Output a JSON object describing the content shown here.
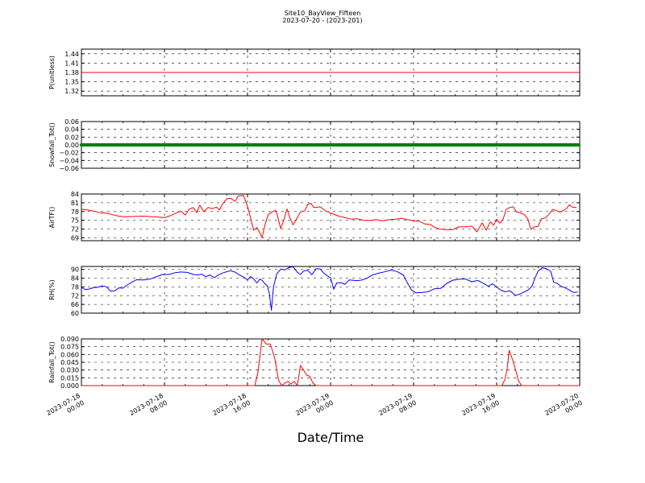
{
  "chart_data": {
    "title": "Site10_BayView_Fifteen",
    "subtitle": "2023-07-20 - (2023-201)",
    "xlabel": "Date/Time",
    "x_ticks": [
      "2023-07-18 00:00",
      "2023-07-18 08:00",
      "2023-07-18 16:00",
      "2023-07-19 00:00",
      "2023-07-19 08:00",
      "2023-07-19 16:00",
      "2023-07-20 00:00"
    ],
    "x_tick_lines": [
      [
        "2023-07-18",
        "00:00"
      ],
      [
        "2023-07-18",
        "08:00"
      ],
      [
        "2023-07-18",
        "16:00"
      ],
      [
        "2023-07-19",
        "00:00"
      ],
      [
        "2023-07-19",
        "08:00"
      ],
      [
        "2023-07-19",
        "16:00"
      ],
      [
        "2023-07-20",
        "00:00"
      ]
    ],
    "xlim": [
      "2023-07-18 00:00",
      "2023-07-20 00:00"
    ],
    "grid": true,
    "panels": [
      {
        "type": "line",
        "ylabel": "P(unitless)",
        "color": "#ff0000",
        "ylim": [
          1.305,
          1.455
        ],
        "yticks": [
          "1.44",
          "1.41",
          "1.38",
          "1.35",
          "1.32"
        ],
        "ytick_values": [
          1.44,
          1.41,
          1.38,
          1.35,
          1.32
        ],
        "points": [
          [
            0,
            1.38
          ],
          [
            48,
            1.38
          ]
        ]
      },
      {
        "type": "scatter",
        "ylabel": "Snowfall_Tot()",
        "color": "#008000",
        "ylim": [
          -0.06,
          0.06
        ],
        "yticks": [
          "0.06",
          "0.04",
          "0.02",
          "0.00",
          "−0.02",
          "−0.04",
          "−0.06"
        ],
        "ytick_values": [
          0.06,
          0.04,
          0.02,
          0.0,
          -0.02,
          -0.04,
          -0.06
        ],
        "points": [
          [
            0,
            0.0
          ],
          [
            48,
            0.0
          ]
        ]
      },
      {
        "type": "line",
        "ylabel": "AirTF()",
        "color": "#ff0000",
        "ylim": [
          68,
          84
        ],
        "yticks": [
          "84",
          "81",
          "78",
          "75",
          "72",
          "69"
        ],
        "ytick_values": [
          84,
          81,
          78,
          75,
          72,
          69
        ],
        "points": [
          [
            0,
            78.8
          ],
          [
            0.6,
            78.5
          ],
          [
            1.2,
            78.1
          ],
          [
            1.8,
            77.6
          ],
          [
            2.4,
            77.5
          ],
          [
            3.0,
            76.9
          ],
          [
            3.6,
            76.4
          ],
          [
            4.2,
            76.2
          ],
          [
            5.0,
            76.3
          ],
          [
            6.0,
            76.4
          ],
          [
            6.8,
            76.2
          ],
          [
            7.4,
            76.1
          ],
          [
            8.0,
            75.9
          ],
          [
            8.6,
            76.6
          ],
          [
            9.2,
            77.6
          ],
          [
            9.6,
            78.1
          ],
          [
            10.0,
            76.8
          ],
          [
            10.4,
            78.9
          ],
          [
            10.8,
            79.3
          ],
          [
            11.1,
            77.6
          ],
          [
            11.4,
            80.2
          ],
          [
            11.8,
            78.0
          ],
          [
            12.2,
            79.4
          ],
          [
            12.6,
            79.0
          ],
          [
            13.0,
            79.5
          ],
          [
            13.3,
            78.6
          ],
          [
            13.6,
            80.6
          ],
          [
            14.0,
            82.4
          ],
          [
            14.4,
            82.5
          ],
          [
            14.8,
            81.5
          ],
          [
            15.1,
            83.3
          ],
          [
            15.6,
            83.5
          ],
          [
            16.0,
            79.8
          ],
          [
            16.3,
            75.7
          ],
          [
            16.6,
            71.6
          ],
          [
            16.9,
            72.5
          ],
          [
            17.2,
            70.7
          ],
          [
            17.4,
            69.0
          ],
          [
            17.7,
            73.7
          ],
          [
            18.0,
            77.0
          ],
          [
            18.4,
            77.9
          ],
          [
            18.7,
            78.4
          ],
          [
            18.9,
            76.5
          ],
          [
            19.2,
            72.1
          ],
          [
            19.5,
            75.2
          ],
          [
            19.8,
            78.9
          ],
          [
            20.1,
            75.7
          ],
          [
            20.4,
            73.4
          ],
          [
            20.8,
            75.9
          ],
          [
            21.1,
            77.9
          ],
          [
            21.5,
            78.2
          ],
          [
            21.8,
            80.4
          ],
          [
            22.1,
            80.8
          ],
          [
            22.4,
            79.4
          ],
          [
            23.0,
            79.6
          ],
          [
            23.6,
            78.1
          ],
          [
            24.2,
            77.2
          ],
          [
            24.8,
            76.4
          ],
          [
            25.4,
            75.9
          ],
          [
            26.0,
            75.4
          ],
          [
            26.6,
            75.5
          ],
          [
            27.2,
            75.0
          ],
          [
            27.8,
            74.9
          ],
          [
            28.4,
            75.2
          ],
          [
            29.0,
            74.8
          ],
          [
            29.6,
            75.2
          ],
          [
            30.2,
            75.3
          ],
          [
            30.8,
            75.7
          ],
          [
            31.4,
            75.2
          ],
          [
            32.0,
            74.9
          ],
          [
            32.6,
            74.6
          ],
          [
            33.1,
            73.7
          ],
          [
            33.6,
            73.6
          ],
          [
            34.0,
            72.6
          ],
          [
            34.5,
            72.0
          ],
          [
            35.2,
            71.8
          ],
          [
            35.8,
            71.8
          ],
          [
            36.3,
            72.7
          ],
          [
            37.0,
            72.8
          ],
          [
            37.6,
            73.0
          ],
          [
            38.1,
            71.0
          ],
          [
            38.6,
            74.1
          ],
          [
            39.0,
            71.6
          ],
          [
            39.4,
            74.5
          ],
          [
            39.7,
            73.3
          ],
          [
            40.0,
            75.4
          ],
          [
            40.3,
            74.0
          ],
          [
            40.6,
            75.1
          ],
          [
            40.9,
            78.6
          ],
          [
            41.2,
            79.3
          ],
          [
            41.6,
            79.6
          ],
          [
            41.9,
            77.9
          ],
          [
            42.3,
            77.6
          ],
          [
            42.7,
            76.8
          ],
          [
            43.0,
            75.5
          ],
          [
            43.3,
            71.9
          ],
          [
            43.6,
            72.7
          ],
          [
            44.0,
            72.9
          ],
          [
            44.3,
            75.5
          ],
          [
            44.7,
            75.8
          ],
          [
            45.1,
            77.3
          ],
          [
            45.4,
            78.7
          ],
          [
            45.8,
            78.3
          ],
          [
            46.1,
            77.8
          ],
          [
            46.4,
            78.3
          ],
          [
            46.7,
            78.9
          ],
          [
            47.0,
            80.3
          ],
          [
            47.3,
            79.5
          ],
          [
            47.7,
            79.4
          ]
        ]
      },
      {
        "type": "line",
        "ylabel": "RH(%)",
        "color": "#0000ff",
        "ylim": [
          60,
          92
        ],
        "yticks": [
          "90",
          "84",
          "78",
          "72",
          "66",
          "60"
        ],
        "ytick_values": [
          90,
          84,
          78,
          72,
          66,
          60
        ],
        "points": [
          [
            0,
            77.6
          ],
          [
            0.4,
            76.1
          ],
          [
            0.8,
            76.6
          ],
          [
            1.2,
            77.6
          ],
          [
            1.6,
            77.7
          ],
          [
            2.0,
            78.7
          ],
          [
            2.4,
            78.1
          ],
          [
            2.8,
            75.1
          ],
          [
            3.2,
            75.3
          ],
          [
            3.6,
            77.3
          ],
          [
            4.0,
            77.1
          ],
          [
            4.4,
            79.3
          ],
          [
            4.8,
            80.9
          ],
          [
            5.3,
            82.9
          ],
          [
            6.0,
            82.8
          ],
          [
            6.6,
            83.3
          ],
          [
            7.2,
            84.9
          ],
          [
            7.8,
            86.5
          ],
          [
            8.4,
            86.5
          ],
          [
            9.0,
            87.7
          ],
          [
            9.6,
            88.2
          ],
          [
            10.2,
            87.9
          ],
          [
            10.8,
            86.5
          ],
          [
            11.2,
            86.2
          ],
          [
            11.6,
            86.7
          ],
          [
            12.0,
            85.0
          ],
          [
            12.4,
            86.2
          ],
          [
            12.8,
            84.3
          ],
          [
            13.2,
            86.3
          ],
          [
            13.6,
            87.5
          ],
          [
            14.0,
            88.4
          ],
          [
            14.4,
            89.1
          ],
          [
            14.8,
            88.1
          ],
          [
            15.2,
            86.2
          ],
          [
            15.6,
            84.9
          ],
          [
            16.0,
            82.8
          ],
          [
            16.3,
            85.1
          ],
          [
            16.6,
            83.4
          ],
          [
            16.9,
            80.7
          ],
          [
            17.2,
            83.4
          ],
          [
            17.4,
            82.5
          ],
          [
            17.7,
            80.0
          ],
          [
            17.9,
            78.8
          ],
          [
            18.1,
            73.7
          ],
          [
            18.3,
            62.0
          ],
          [
            18.5,
            78.0
          ],
          [
            18.8,
            86.7
          ],
          [
            19.2,
            90.2
          ],
          [
            19.6,
            89.7
          ],
          [
            20.0,
            91.3
          ],
          [
            20.4,
            91.8
          ],
          [
            20.8,
            88.0
          ],
          [
            21.1,
            86.5
          ],
          [
            21.4,
            88.9
          ],
          [
            21.8,
            89.4
          ],
          [
            22.2,
            86.3
          ],
          [
            22.6,
            90.4
          ],
          [
            23.0,
            90.3
          ],
          [
            23.3,
            87.8
          ],
          [
            23.6,
            86.0
          ],
          [
            24.0,
            84.3
          ],
          [
            24.3,
            76.4
          ],
          [
            24.6,
            80.7
          ],
          [
            25.0,
            80.9
          ],
          [
            25.4,
            79.8
          ],
          [
            25.8,
            82.8
          ],
          [
            26.2,
            82.5
          ],
          [
            26.6,
            82.3
          ],
          [
            27.0,
            82.7
          ],
          [
            27.5,
            83.9
          ],
          [
            28.0,
            86.1
          ],
          [
            28.6,
            87.3
          ],
          [
            29.2,
            88.3
          ],
          [
            29.8,
            89.5
          ],
          [
            30.4,
            88.5
          ],
          [
            31.0,
            86.2
          ],
          [
            31.4,
            80.7
          ],
          [
            31.8,
            75.9
          ],
          [
            32.2,
            74.0
          ],
          [
            32.8,
            74.1
          ],
          [
            33.4,
            74.7
          ],
          [
            34.0,
            76.7
          ],
          [
            34.6,
            77.0
          ],
          [
            35.2,
            80.4
          ],
          [
            35.8,
            82.6
          ],
          [
            36.4,
            83.2
          ],
          [
            37.0,
            83.4
          ],
          [
            37.6,
            81.5
          ],
          [
            38.2,
            82.4
          ],
          [
            38.8,
            80.1
          ],
          [
            39.2,
            78.4
          ],
          [
            39.6,
            80.1
          ],
          [
            40.0,
            78.0
          ],
          [
            40.4,
            75.7
          ],
          [
            40.8,
            74.7
          ],
          [
            41.3,
            75.2
          ],
          [
            41.8,
            72.2
          ],
          [
            42.2,
            72.9
          ],
          [
            42.6,
            74.4
          ],
          [
            43.0,
            75.7
          ],
          [
            43.4,
            78.3
          ],
          [
            43.7,
            84.1
          ],
          [
            44.0,
            88.9
          ],
          [
            44.4,
            91.1
          ],
          [
            44.8,
            90.4
          ],
          [
            45.2,
            88.7
          ],
          [
            45.5,
            81.2
          ],
          [
            45.8,
            80.6
          ],
          [
            46.2,
            78.4
          ],
          [
            46.6,
            77.3
          ],
          [
            47.0,
            75.9
          ],
          [
            47.4,
            74.2
          ],
          [
            47.8,
            74.5
          ]
        ]
      },
      {
        "type": "line",
        "ylabel": "Rainfall_Tot()",
        "color": "#ff0000",
        "ylim": [
          0,
          0.09
        ],
        "yticks": [
          "0.090",
          "0.075",
          "0.060",
          "0.045",
          "0.030",
          "0.015",
          "0.000"
        ],
        "ytick_values": [
          0.09,
          0.075,
          0.06,
          0.045,
          0.03,
          0.015,
          0.0
        ],
        "points": [
          [
            0,
            0.0
          ],
          [
            16.7,
            0.0
          ],
          [
            17.0,
            0.025
          ],
          [
            17.4,
            0.09
          ],
          [
            17.8,
            0.08
          ],
          [
            18.2,
            0.08
          ],
          [
            18.6,
            0.055
          ],
          [
            19.0,
            0.01
          ],
          [
            19.3,
            0.0
          ],
          [
            19.6,
            0.005
          ],
          [
            19.9,
            0.008
          ],
          [
            20.2,
            0.003
          ],
          [
            20.5,
            0.008
          ],
          [
            20.8,
            0.0
          ],
          [
            21.1,
            0.039
          ],
          [
            21.4,
            0.03
          ],
          [
            21.7,
            0.02
          ],
          [
            22.0,
            0.018
          ],
          [
            22.3,
            0.005
          ],
          [
            22.6,
            0.0
          ],
          [
            40.5,
            0.0
          ],
          [
            40.8,
            0.012
          ],
          [
            41.0,
            0.031
          ],
          [
            41.2,
            0.068
          ],
          [
            41.5,
            0.052
          ],
          [
            41.8,
            0.032
          ],
          [
            42.1,
            0.01
          ],
          [
            42.4,
            0.0
          ],
          [
            48,
            0.0
          ]
        ]
      }
    ]
  }
}
